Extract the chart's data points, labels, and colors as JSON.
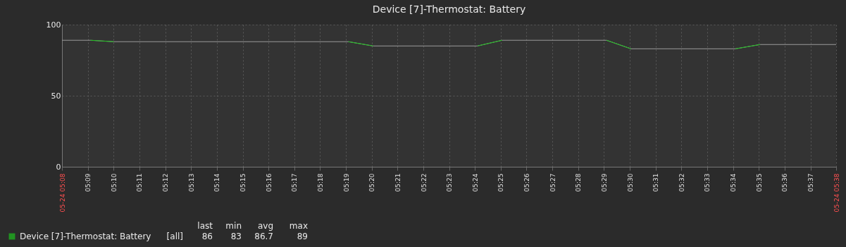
{
  "chart_data": {
    "type": "line",
    "title": "Device [7]-Thermostat: Battery",
    "xlim": [
      5.1333,
      5.6333
    ],
    "ylim": [
      0,
      100
    ],
    "yticks": [
      0,
      50,
      100
    ],
    "xticks": [
      {
        "value": 5.1333,
        "label": "05-24 05:08"
      },
      {
        "value": 5.15,
        "label": "05:09"
      },
      {
        "value": 5.1667,
        "label": "05:10"
      },
      {
        "value": 5.1833,
        "label": "05:11"
      },
      {
        "value": 5.2,
        "label": "05:12"
      },
      {
        "value": 5.2167,
        "label": "05:13"
      },
      {
        "value": 5.2333,
        "label": "05:14"
      },
      {
        "value": 5.25,
        "label": "05:15"
      },
      {
        "value": 5.2667,
        "label": "05:16"
      },
      {
        "value": 5.2833,
        "label": "05:17"
      },
      {
        "value": 5.3,
        "label": "05:18"
      },
      {
        "value": 5.3167,
        "label": "05:19"
      },
      {
        "value": 5.3333,
        "label": "05:20"
      },
      {
        "value": 5.35,
        "label": "05:21"
      },
      {
        "value": 5.3667,
        "label": "05:22"
      },
      {
        "value": 5.3833,
        "label": "05:23"
      },
      {
        "value": 5.4,
        "label": "05:24"
      },
      {
        "value": 5.4167,
        "label": "05:25"
      },
      {
        "value": 5.4333,
        "label": "05:26"
      },
      {
        "value": 5.45,
        "label": "05:27"
      },
      {
        "value": 5.4667,
        "label": "05:28"
      },
      {
        "value": 5.4833,
        "label": "05:29"
      },
      {
        "value": 5.5,
        "label": "05:30"
      },
      {
        "value": 5.5167,
        "label": "05:31"
      },
      {
        "value": 5.5333,
        "label": "05:32"
      },
      {
        "value": 5.55,
        "label": "05:33"
      },
      {
        "value": 5.5667,
        "label": "05:34"
      },
      {
        "value": 5.5833,
        "label": "05:35"
      },
      {
        "value": 5.6,
        "label": "05:36"
      },
      {
        "value": 5.6167,
        "label": "05:37"
      },
      {
        "value": 5.6333,
        "label": "05-24 05:38"
      }
    ],
    "grid": true,
    "legend": "bottom",
    "series": [
      {
        "color": "#9a9a9a",
        "x": [
          5.1333,
          5.1517,
          5.1667,
          5.3183,
          5.3342,
          5.4017,
          5.4175,
          5.485,
          5.5008,
          5.5683,
          5.5842,
          5.6333
        ],
        "values": [
          89,
          89,
          88,
          88,
          85,
          85,
          89,
          89,
          83,
          83,
          86,
          86
        ]
      },
      {
        "name": "Device [7]-Thermostat: Battery",
        "color": "#1ec01e",
        "x": [
          5.1517,
          5.1667,
          5.24,
          5.3183,
          5.3342,
          5.37,
          5.4017,
          5.4175,
          5.45,
          5.485,
          5.5008,
          5.53,
          5.5683,
          5.5842
        ],
        "values": [
          89,
          88,
          null,
          88,
          85,
          null,
          85,
          89,
          null,
          89,
          83,
          null,
          83,
          86
        ]
      }
    ],
    "annotations": [
      "[all]",
      "last",
      "min",
      "avg",
      "max",
      "86",
      "83",
      "86.7",
      "89"
    ]
  }
}
